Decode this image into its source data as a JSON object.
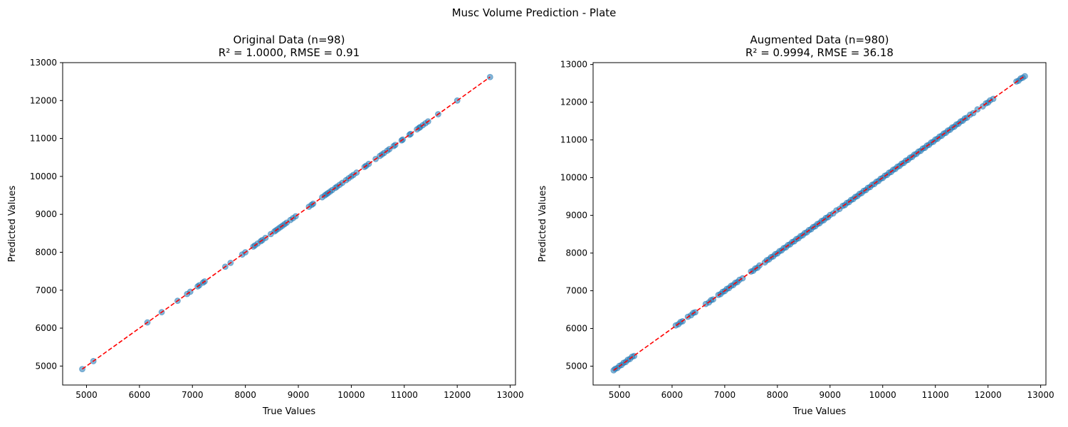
{
  "figure": {
    "suptitle": "Musc Volume Prediction - Plate"
  },
  "colors": {
    "points": "#1f77b4",
    "fit_line": "#ff0000"
  },
  "chart_data": [
    {
      "type": "scatter",
      "title_line1": "Original Data (n=98)",
      "title_line2": "R² = 1.0000, RMSE = 0.91",
      "xlabel": "True Values",
      "ylabel": "Predicted Values",
      "xlim": [
        4550,
        13100
      ],
      "ylim": [
        4500,
        13000
      ],
      "xticks": [
        5000,
        6000,
        7000,
        8000,
        9000,
        10000,
        11000,
        12000,
        13000
      ],
      "yticks": [
        5000,
        6000,
        7000,
        8000,
        9000,
        10000,
        11000,
        12000,
        13000
      ],
      "reference_line": [
        [
          4920,
          4920
        ],
        [
          12620,
          12620
        ]
      ],
      "x": [
        4920,
        5130,
        6150,
        6420,
        6720,
        6900,
        6960,
        7100,
        7130,
        7200,
        7230,
        7620,
        7720,
        7940,
        8000,
        8150,
        8180,
        8230,
        8290,
        8320,
        8380,
        8480,
        8550,
        8580,
        8620,
        8660,
        8700,
        8740,
        8780,
        8850,
        8900,
        8950,
        9200,
        9250,
        9280,
        9450,
        9500,
        9530,
        9560,
        9600,
        9640,
        9700,
        9730,
        9780,
        9830,
        9900,
        9950,
        10000,
        10040,
        10100,
        10250,
        10280,
        10330,
        10460,
        10540,
        10580,
        10620,
        10680,
        10720,
        10800,
        10830,
        10950,
        10970,
        11100,
        11120,
        11240,
        11280,
        11300,
        11350,
        11400,
        11450,
        11640,
        12000,
        12620
      ],
      "y": [
        4920,
        5130,
        6150,
        6420,
        6720,
        6900,
        6960,
        7100,
        7130,
        7200,
        7230,
        7620,
        7720,
        7940,
        8000,
        8150,
        8180,
        8230,
        8290,
        8320,
        8380,
        8480,
        8550,
        8580,
        8620,
        8660,
        8700,
        8740,
        8780,
        8850,
        8900,
        8950,
        9200,
        9250,
        9280,
        9450,
        9500,
        9530,
        9560,
        9600,
        9640,
        9700,
        9730,
        9780,
        9830,
        9900,
        9950,
        10000,
        10040,
        10100,
        10250,
        10280,
        10330,
        10460,
        10540,
        10580,
        10620,
        10680,
        10720,
        10800,
        10830,
        10950,
        10970,
        11100,
        11120,
        11240,
        11280,
        11300,
        11350,
        11400,
        11450,
        11640,
        12000,
        12620
      ]
    },
    {
      "type": "scatter",
      "title_line1": "Augmented Data (n=980)",
      "title_line2": "R² = 0.9994, RMSE = 36.18",
      "xlabel": "True Values",
      "ylabel": "Predicted Values",
      "xlim": [
        4500,
        13100
      ],
      "ylim": [
        4500,
        13050
      ],
      "xticks": [
        5000,
        6000,
        7000,
        8000,
        9000,
        10000,
        11000,
        12000,
        13000
      ],
      "yticks": [
        5000,
        6000,
        7000,
        8000,
        9000,
        10000,
        11000,
        12000,
        13000
      ],
      "reference_line": [
        [
          4890,
          4890
        ],
        [
          12700,
          12700
        ]
      ],
      "x": [
        4890,
        4920,
        4960,
        5000,
        5040,
        5080,
        5120,
        5160,
        5200,
        5240,
        5280,
        6070,
        6120,
        6160,
        6200,
        6300,
        6360,
        6400,
        6440,
        6640,
        6700,
        6740,
        6780,
        6880,
        6920,
        6960,
        7000,
        7040,
        7080,
        7120,
        7160,
        7200,
        7240,
        7280,
        7340,
        7500,
        7540,
        7580,
        7620,
        7660,
        7760,
        7800,
        7840,
        7880,
        7920,
        7960,
        8000,
        8040,
        8080,
        8120,
        8160,
        8200,
        8240,
        8280,
        8320,
        8360,
        8400,
        8440,
        8480,
        8520,
        8560,
        8600,
        8640,
        8680,
        8720,
        8760,
        8800,
        8840,
        8880,
        8920,
        8960,
        9000,
        9060,
        9120,
        9180,
        9240,
        9280,
        9320,
        9360,
        9400,
        9440,
        9480,
        9520,
        9560,
        9600,
        9640,
        9680,
        9720,
        9760,
        9800,
        9840,
        9880,
        9920,
        9960,
        10000,
        10040,
        10080,
        10120,
        10160,
        10200,
        10240,
        10280,
        10320,
        10360,
        10400,
        10440,
        10480,
        10520,
        10560,
        10600,
        10640,
        10680,
        10720,
        10760,
        10800,
        10840,
        10880,
        10920,
        10960,
        11000,
        11040,
        11080,
        11120,
        11160,
        11200,
        11240,
        11280,
        11320,
        11360,
        11400,
        11440,
        11480,
        11520,
        11560,
        11600,
        11660,
        11720,
        11800,
        11900,
        11960,
        12000,
        12040,
        12100,
        12540,
        12580,
        12620,
        12660,
        12700
      ],
      "y": [
        4890,
        4930,
        4950,
        5010,
        5030,
        5090,
        5110,
        5170,
        5190,
        5250,
        5270,
        6080,
        6110,
        6170,
        6190,
        6310,
        6350,
        6410,
        6430,
        6650,
        6690,
        6750,
        6770,
        6890,
        6910,
        6970,
        6990,
        7050,
        7070,
        7130,
        7150,
        7210,
        7230,
        7290,
        7330,
        7510,
        7530,
        7590,
        7610,
        7670,
        7750,
        7810,
        7830,
        7890,
        7910,
        7970,
        7990,
        8050,
        8070,
        8130,
        8150,
        8210,
        8230,
        8290,
        8310,
        8370,
        8390,
        8450,
        8470,
        8530,
        8550,
        8610,
        8630,
        8690,
        8710,
        8770,
        8790,
        8850,
        8870,
        8930,
        8950,
        9010,
        9050,
        9130,
        9170,
        9250,
        9270,
        9330,
        9350,
        9410,
        9430,
        9490,
        9510,
        9570,
        9590,
        9650,
        9670,
        9730,
        9750,
        9810,
        9830,
        9890,
        9910,
        9970,
        9990,
        10050,
        10070,
        10130,
        10150,
        10210,
        10230,
        10290,
        10310,
        10370,
        10390,
        10450,
        10470,
        10530,
        10550,
        10610,
        10630,
        10690,
        10710,
        10770,
        10790,
        10850,
        10870,
        10930,
        10950,
        11010,
        11030,
        11090,
        11110,
        11170,
        11190,
        11250,
        11270,
        11330,
        11350,
        11410,
        11430,
        11490,
        11510,
        11570,
        11590,
        11670,
        11710,
        11810,
        11890,
        11970,
        11990,
        12050,
        12090,
        12550,
        12570,
        12630,
        12650,
        12690
      ]
    }
  ]
}
